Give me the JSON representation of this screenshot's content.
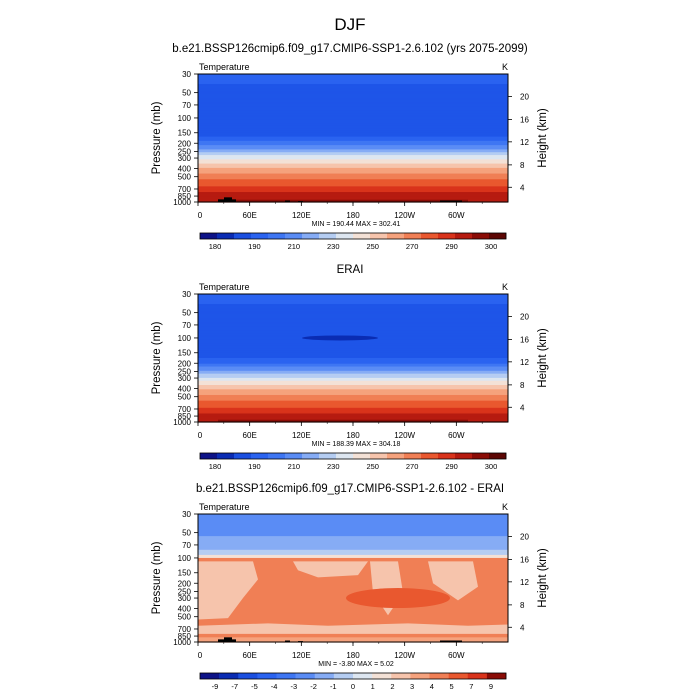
{
  "page": {
    "title": "DJF"
  },
  "chart_data": [
    {
      "type": "heatmap",
      "title": "b.e21.BSSP126cmip6.f09_g17.CMIP6-SSP1-2.6.102 (yrs 2075-2099)",
      "left_label": "Temperature",
      "right_label": "K",
      "ylabel": "Pressure (mb)",
      "ylabel_right": "Height (km)",
      "x_ticks": [
        "0",
        "60E",
        "120E",
        "180",
        "120W",
        "60W"
      ],
      "y_ticks": [
        "30",
        "50",
        "70",
        "100",
        "150",
        "200",
        "250",
        "300",
        "400",
        "500",
        "700",
        "850",
        "1000"
      ],
      "height_ticks": [
        "20",
        "16",
        "12",
        "8",
        "4"
      ],
      "stats": "MIN = 190.44  MAX = 302.41",
      "colorbar": {
        "labels": [
          "180",
          "190",
          "210",
          "230",
          "250",
          "270",
          "290",
          "300"
        ],
        "colors": [
          "#0d1387",
          "#0a2cb3",
          "#1a4fe0",
          "#2a63f0",
          "#3e76f3",
          "#5a8cf5",
          "#86acf5",
          "#b5cdf2",
          "#dde6f0",
          "#f3e1d6",
          "#f6c4ac",
          "#f5a27d",
          "#f07f55",
          "#e9582f",
          "#d9331b",
          "#b61b10",
          "#8a0c06",
          "#5c0603"
        ]
      },
      "profile": [
        {
          "p": 30,
          "v": 218
        },
        {
          "p": 50,
          "v": 212
        },
        {
          "p": 70,
          "v": 208
        },
        {
          "p": 100,
          "v": 205
        },
        {
          "p": 150,
          "v": 212
        },
        {
          "p": 200,
          "v": 221
        },
        {
          "p": 250,
          "v": 230
        },
        {
          "p": 300,
          "v": 238
        },
        {
          "p": 400,
          "v": 251
        },
        {
          "p": 500,
          "v": 260
        },
        {
          "p": 700,
          "v": 276
        },
        {
          "p": 850,
          "v": 285
        },
        {
          "p": 1000,
          "v": 290
        }
      ],
      "tropic_bump": 5
    },
    {
      "type": "heatmap",
      "title": "ERAI",
      "left_label": "Temperature",
      "right_label": "K",
      "ylabel": "Pressure (mb)",
      "ylabel_right": "Height (km)",
      "x_ticks": [
        "0",
        "60E",
        "120E",
        "180",
        "120W",
        "60W"
      ],
      "y_ticks": [
        "30",
        "50",
        "70",
        "100",
        "150",
        "200",
        "250",
        "300",
        "400",
        "500",
        "700",
        "850",
        "1000"
      ],
      "height_ticks": [
        "20",
        "16",
        "12",
        "8",
        "4"
      ],
      "stats": "MIN = 188.39  MAX = 304.18",
      "colorbar": {
        "labels": [
          "180",
          "190",
          "210",
          "230",
          "250",
          "270",
          "290",
          "300"
        ],
        "colors": [
          "#0d1387",
          "#0a2cb3",
          "#1a4fe0",
          "#2a63f0",
          "#3e76f3",
          "#5a8cf5",
          "#86acf5",
          "#b5cdf2",
          "#dde6f0",
          "#f3e1d6",
          "#f6c4ac",
          "#f5a27d",
          "#f07f55",
          "#e9582f",
          "#d9331b",
          "#b61b10",
          "#8a0c06",
          "#5c0603"
        ]
      },
      "profile": [
        {
          "p": 30,
          "v": 218
        },
        {
          "p": 50,
          "v": 212
        },
        {
          "p": 70,
          "v": 208
        },
        {
          "p": 100,
          "v": 203
        },
        {
          "p": 150,
          "v": 210
        },
        {
          "p": 200,
          "v": 219
        },
        {
          "p": 250,
          "v": 228
        },
        {
          "p": 300,
          "v": 236
        },
        {
          "p": 400,
          "v": 249
        },
        {
          "p": 500,
          "v": 258
        },
        {
          "p": 700,
          "v": 274
        },
        {
          "p": 850,
          "v": 284
        },
        {
          "p": 1000,
          "v": 289
        }
      ],
      "tropic_bump": 5
    },
    {
      "type": "heatmap",
      "title": "b.e21.BSSP126cmip6.f09_g17.CMIP6-SSP1-2.6.102 - ERAI",
      "left_label": "Temperature",
      "right_label": "K",
      "ylabel": "Pressure (mb)",
      "ylabel_right": "Height (km)",
      "x_ticks": [
        "0",
        "60E",
        "120E",
        "180",
        "120W",
        "60W"
      ],
      "y_ticks": [
        "30",
        "50",
        "70",
        "100",
        "150",
        "200",
        "250",
        "300",
        "400",
        "500",
        "700",
        "850",
        "1000"
      ],
      "height_ticks": [
        "20",
        "16",
        "12",
        "8",
        "4"
      ],
      "stats": "MIN = -3.80  MAX =  5.02",
      "colorbar": {
        "labels": [
          "-9",
          "-7",
          "-5",
          "-4",
          "-3",
          "-2",
          "-1",
          "0",
          "1",
          "2",
          "3",
          "4",
          "5",
          "7",
          "9"
        ],
        "colors": [
          "#0d1387",
          "#0a2cb3",
          "#1a4fe0",
          "#2a63f0",
          "#3e76f3",
          "#5a8cf5",
          "#86acf5",
          "#b5cdf2",
          "#dde6f0",
          "#f3e1d6",
          "#f6c4ac",
          "#f5a27d",
          "#f07f55",
          "#e9582f",
          "#d9331b",
          "#8a0c06"
        ]
      },
      "bands": [
        {
          "p_top": 30,
          "p_bot": 55,
          "color": "#5a8cf5"
        },
        {
          "p_top": 55,
          "p_bot": 80,
          "color": "#86acf5"
        },
        {
          "p_top": 80,
          "p_bot": 92,
          "color": "#b5cdf2"
        },
        {
          "p_top": 92,
          "p_bot": 100,
          "color": "#f3e1d6"
        },
        {
          "p_top": 100,
          "p_bot": 1000,
          "color": "#f07f55"
        }
      ]
    }
  ]
}
